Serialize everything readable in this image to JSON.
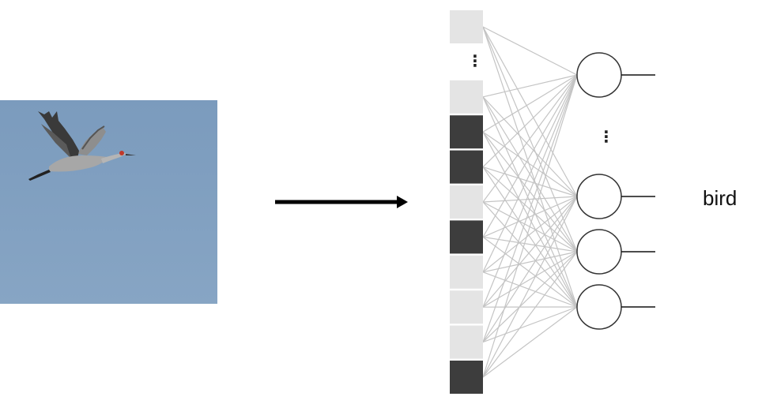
{
  "colors": {
    "sky": "#819fbf",
    "cell_light": "#e4e4e4",
    "cell_dark": "#3d3d3d",
    "connection": "#c4c4c4",
    "neuron_stroke": "#333333",
    "arrow": "#000000"
  },
  "input_layer": {
    "cells": [
      {
        "shade": "light"
      },
      {
        "shade": "gap"
      },
      {
        "shade": "light"
      },
      {
        "shade": "dark"
      },
      {
        "shade": "dark"
      },
      {
        "shade": "light"
      },
      {
        "shade": "dark"
      },
      {
        "shade": "light"
      },
      {
        "shade": "light"
      },
      {
        "shade": "light"
      },
      {
        "shade": "dark"
      }
    ],
    "ellipsis": "⋮"
  },
  "output_layer": {
    "neurons": 4,
    "ellipsis": "⋮"
  },
  "output_label": "bird",
  "image": {
    "subject": "sandhill-crane-in-flight"
  }
}
